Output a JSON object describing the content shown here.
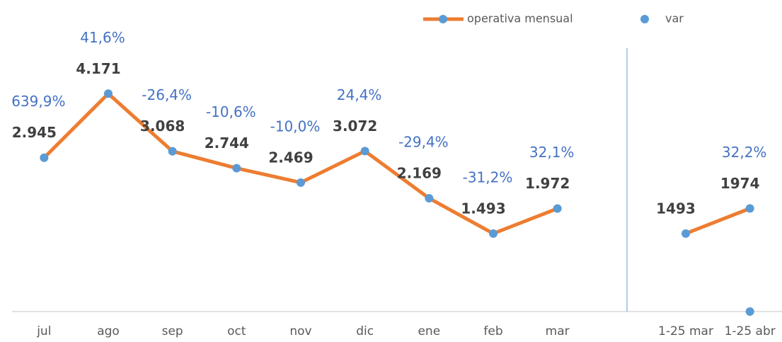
{
  "chart_data": {
    "type": "line",
    "categories": [
      "jul",
      "ago",
      "sep",
      "oct",
      "nov",
      "dic",
      "ene",
      "feb",
      "mar",
      null,
      "1-25 mar",
      "1-25 abr"
    ],
    "series": [
      {
        "name": "operativa mensual",
        "color": "#ed7d31",
        "marker_color": "#5b9bd5",
        "values": [
          2945,
          4171,
          3068,
          2744,
          2469,
          3072,
          2169,
          1493,
          1972,
          null,
          1493,
          1974
        ],
        "value_labels": [
          "2.945",
          "4.171",
          "3.068",
          "2.744",
          "2.469",
          "3.072",
          "2.169",
          "1.493",
          "1.972",
          null,
          "1493",
          "1974"
        ]
      },
      {
        "name": "var",
        "color": "#5b9bd5",
        "label_color": "#4472c4",
        "markers": "last",
        "values": [
          6.399,
          0.416,
          -0.264,
          -0.106,
          -0.1,
          0.244,
          -0.294,
          -0.312,
          0.321,
          null,
          null,
          0.322
        ],
        "value_labels": [
          "639,9%",
          "41,6%",
          "-26,4%",
          "-10,6%",
          "-10,0%",
          "24,4%",
          "-29,4%",
          "-31,2%",
          "32,1%",
          null,
          null,
          "32,2%"
        ]
      }
    ],
    "ylim": [
      0,
      4500
    ],
    "grid": false,
    "legend": "top-right"
  }
}
